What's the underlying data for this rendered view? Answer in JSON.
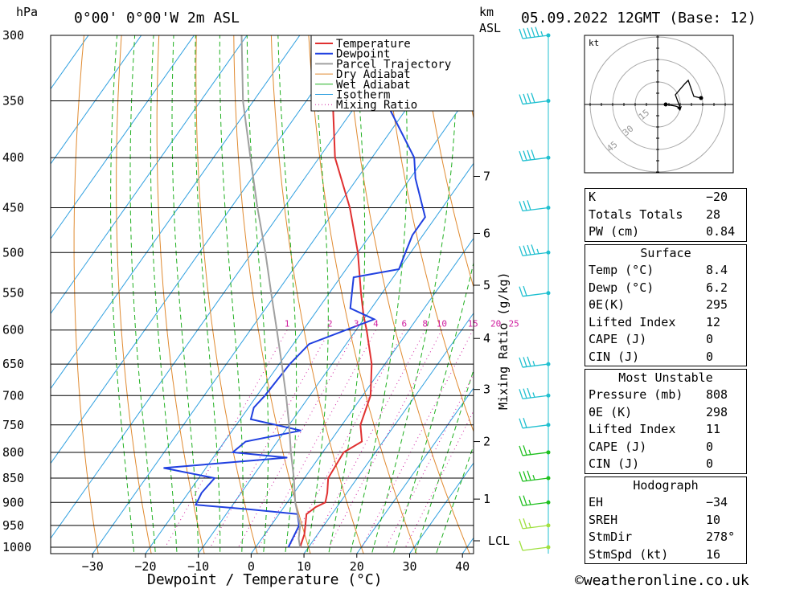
{
  "header": {
    "pressure_unit": "hPa",
    "location": "0°00' 0°00'W 2m ASL",
    "height_unit_line1": "km",
    "height_unit_line2": "ASL",
    "datetime": "05.09.2022 12GMT (Base: 12)"
  },
  "footer": {
    "copyright": "©weatheronline.co.uk"
  },
  "colors": {
    "temperature": "#e03030",
    "dewpoint": "#2040e0",
    "parcel": "#a0a0a0",
    "dry_adiabat": "#e08a30",
    "wet_adiabat": "#20b020",
    "isotherm": "#30a0e0",
    "mixing_ratio": "#d020a0"
  },
  "chart_data": {
    "type": "line",
    "title": "",
    "xlabel": "Dewpoint / Temperature (°C)",
    "ylabel": "hPa",
    "secondary_ylabel": "Mixing Ratio (g/kg)",
    "x_ticks": [
      "−30",
      "−20",
      "−10",
      "0",
      "10",
      "20",
      "30",
      "40"
    ],
    "y_ticks": [
      "300",
      "350",
      "400",
      "450",
      "500",
      "550",
      "600",
      "650",
      "700",
      "750",
      "800",
      "850",
      "900",
      "950",
      "1000"
    ],
    "km_ticks": [
      "7",
      "6",
      "5",
      "4",
      "3",
      "2",
      "1",
      "LCL"
    ],
    "mixing_ratio_labels": [
      "1",
      "2",
      "3",
      "4",
      "6",
      "8",
      "10",
      "15",
      "20",
      "25"
    ],
    "legend": [
      "Temperature",
      "Dewpoint",
      "Parcel Trajectory",
      "Dry Adiabat",
      "Wet Adiabat",
      "Isotherm",
      "Mixing Ratio"
    ],
    "legend_position": "top-right",
    "series": [
      {
        "name": "Temperature",
        "p": [
          1000,
          970,
          950,
          925,
          910,
          900,
          880,
          850,
          800,
          780,
          750,
          700,
          650,
          600,
          580,
          550,
          500,
          450,
          400,
          350,
          300
        ],
        "t": [
          8.4,
          7.5,
          6.5,
          5.2,
          6.0,
          7.2,
          6.3,
          4.5,
          4.0,
          6.0,
          3.5,
          1.5,
          -2.5,
          -8.0,
          -10.5,
          -14.0,
          -20.0,
          -27.5,
          -37.0,
          -45.0,
          -54.0
        ]
      },
      {
        "name": "Dewpoint",
        "p": [
          1000,
          950,
          925,
          915,
          905,
          880,
          850,
          830,
          810,
          800,
          780,
          760,
          740,
          720,
          700,
          650,
          620,
          585,
          570,
          530,
          520,
          500,
          480,
          460,
          420,
          400,
          350,
          300
        ],
        "t": [
          6.2,
          5.3,
          3.5,
          -6.0,
          -17.0,
          -17.5,
          -17.0,
          -28.0,
          -6.0,
          -17.0,
          -16.0,
          -7.0,
          -18.0,
          -19.0,
          -18.5,
          -18.0,
          -17.0,
          -8.0,
          -14.0,
          -17.5,
          -10.0,
          -11.0,
          -12.0,
          -12.0,
          -19.0,
          -22.0,
          -35.0,
          -47.0
        ]
      },
      {
        "name": "Parcel Trajectory",
        "p": [
          1000,
          980,
          950,
          900,
          850,
          800,
          750,
          700,
          650,
          600,
          550,
          500,
          450,
          400,
          350,
          300
        ],
        "t": [
          8.4,
          7.0,
          5.5,
          1.5,
          -2.0,
          -6.0,
          -10.0,
          -14.5,
          -19.5,
          -25.0,
          -31.0,
          -37.5,
          -45.0,
          -53.0,
          -62.0,
          -71.0
        ]
      }
    ],
    "wind_barbs_km": [
      {
        "p": 300,
        "dir": 280,
        "kt": 45
      },
      {
        "p": 350,
        "dir": 280,
        "kt": 40
      },
      {
        "p": 400,
        "dir": 280,
        "kt": 40
      },
      {
        "p": 450,
        "dir": 280,
        "kt": 30
      },
      {
        "p": 500,
        "dir": 280,
        "kt": 35
      },
      {
        "p": 550,
        "dir": 280,
        "kt": 20
      },
      {
        "p": 650,
        "dir": 280,
        "kt": 25
      },
      {
        "p": 700,
        "dir": 285,
        "kt": 25
      },
      {
        "p": 750,
        "dir": 290,
        "kt": 20
      },
      {
        "p": 800,
        "dir": 290,
        "kt": 15
      },
      {
        "p": 850,
        "dir": 290,
        "kt": 25
      },
      {
        "p": 900,
        "dir": 290,
        "kt": 15
      },
      {
        "p": 950,
        "dir": 295,
        "kt": 15
      },
      {
        "p": 1000,
        "dir": 300,
        "kt": 10
      }
    ],
    "hodograph": {
      "unit": "kt",
      "rings": [
        "15",
        "30",
        "45"
      ]
    }
  },
  "indices": [
    {
      "label": "K",
      "value": "−20"
    },
    {
      "label": "Totals Totals",
      "value": "28"
    },
    {
      "label": "PW (cm)",
      "value": "0.84"
    }
  ],
  "surface": {
    "title": "Surface",
    "rows": [
      {
        "label": "Temp (°C)",
        "value": "8.4"
      },
      {
        "label": "Dewp (°C)",
        "value": "6.2"
      },
      {
        "label": "θE(K)",
        "value": "295"
      },
      {
        "label": "Lifted Index",
        "value": "12"
      },
      {
        "label": "CAPE (J)",
        "value": "0"
      },
      {
        "label": "CIN (J)",
        "value": "0"
      }
    ]
  },
  "most_unstable": {
    "title": "Most Unstable",
    "rows": [
      {
        "label": "Pressure (mb)",
        "value": "808"
      },
      {
        "label": "θE (K)",
        "value": "298"
      },
      {
        "label": "Lifted Index",
        "value": "11"
      },
      {
        "label": "CAPE (J)",
        "value": "0"
      },
      {
        "label": "CIN (J)",
        "value": "0"
      }
    ]
  },
  "hodograph_table": {
    "title": "Hodograph",
    "rows": [
      {
        "label": "EH",
        "value": "−34"
      },
      {
        "label": "SREH",
        "value": "10"
      },
      {
        "label": "StmDir",
        "value": "278°"
      },
      {
        "label": "StmSpd (kt)",
        "value": "16"
      }
    ]
  }
}
